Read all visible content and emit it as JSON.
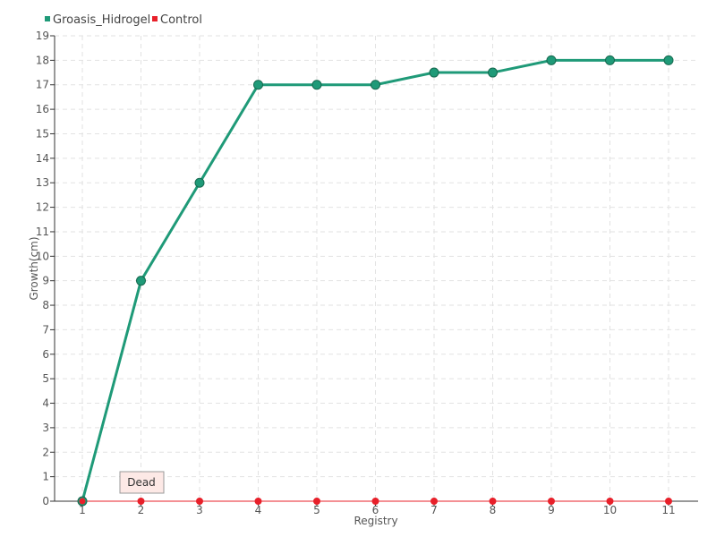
{
  "chart_data": {
    "type": "line",
    "title": "",
    "xlabel": "Registry",
    "ylabel": "Growth(cm)",
    "categories": [
      "1",
      "2",
      "3",
      "4",
      "5",
      "6",
      "7",
      "8",
      "9",
      "10",
      "11"
    ],
    "ylim": [
      0,
      19
    ],
    "yticks": [
      0,
      1,
      2,
      3,
      4,
      5,
      6,
      7,
      8,
      9,
      10,
      11,
      12,
      13,
      14,
      15,
      16,
      17,
      18,
      19
    ],
    "grid": true,
    "legend_position": "top-left",
    "series": [
      {
        "name": "Groasis_Hidrogel",
        "color": "#1f9a78",
        "values": [
          0,
          9,
          13,
          17,
          17,
          17,
          17.5,
          17.5,
          18,
          18,
          18
        ]
      },
      {
        "name": "Control",
        "color": "#e8202a",
        "values": [
          0,
          0,
          0,
          0,
          0,
          0,
          0,
          0,
          0,
          0,
          0
        ]
      }
    ],
    "annotations": [
      {
        "text": "Dead",
        "category": "2",
        "value": 0
      }
    ]
  }
}
